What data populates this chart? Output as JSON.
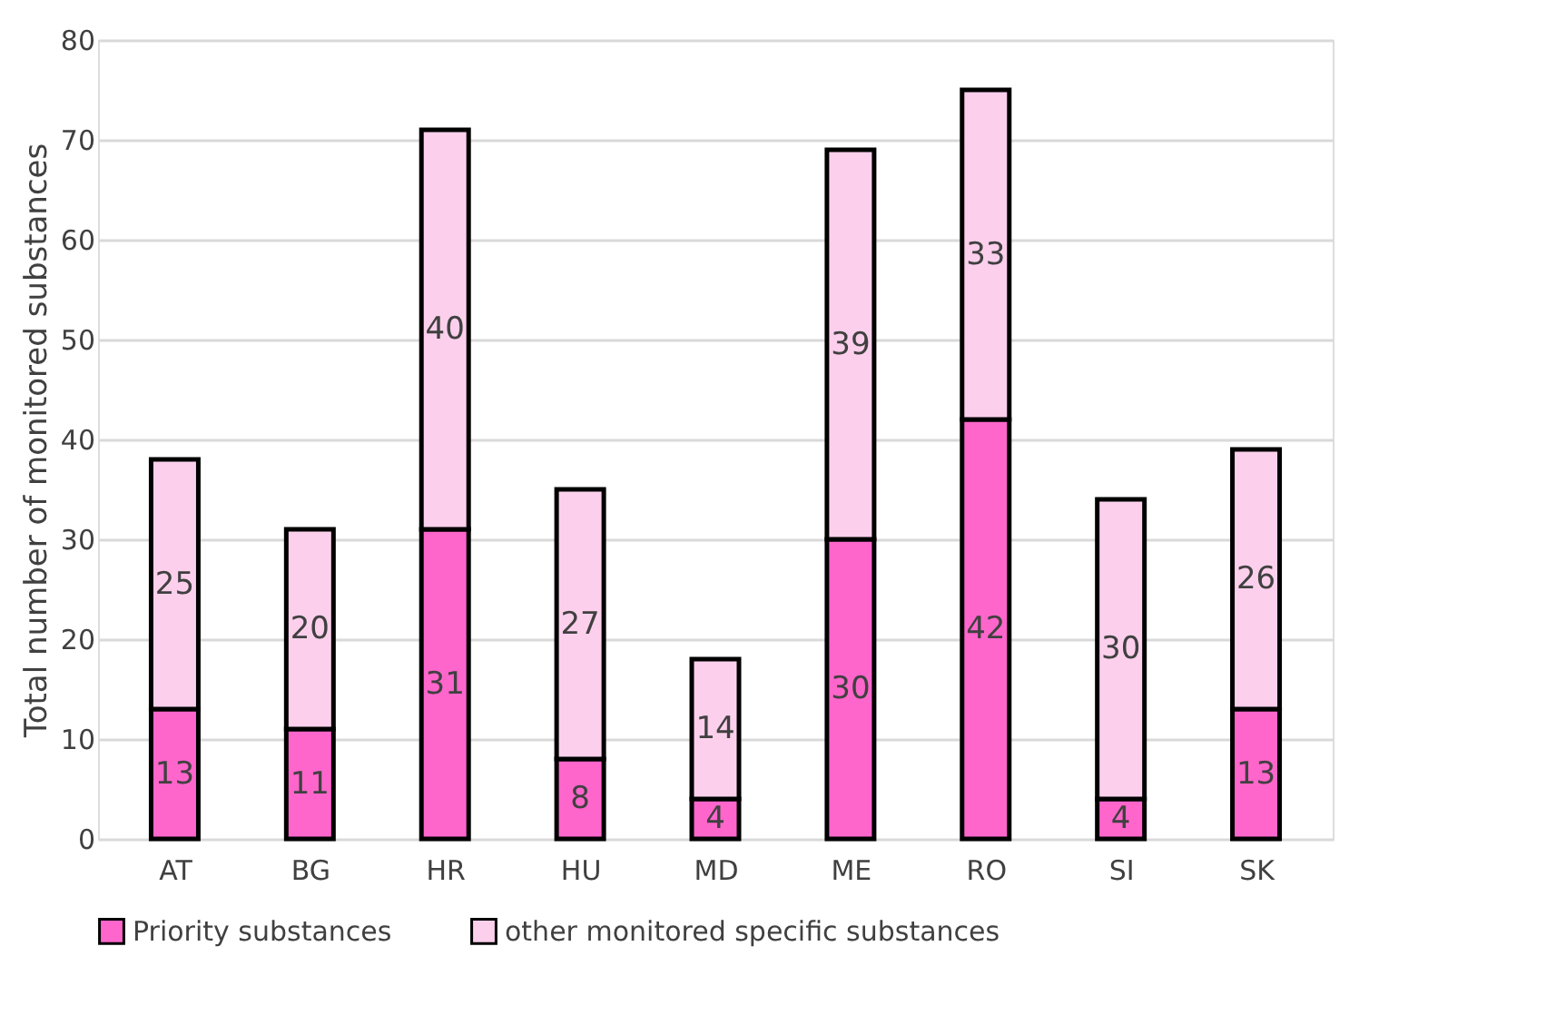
{
  "chart_data": {
    "type": "bar",
    "stacked": true,
    "ylabel": "Total number of monitored substances",
    "categories": [
      "AT",
      "BG",
      "HR",
      "HU",
      "MD",
      "ME",
      "RO",
      "SI",
      "SK"
    ],
    "series": [
      {
        "name": "Priority substances",
        "color": "#ff66cc",
        "values": [
          13,
          11,
          31,
          8,
          4,
          30,
          42,
          4,
          13
        ]
      },
      {
        "name": "other monitored specific substances",
        "color": "#fcd0ec",
        "values": [
          25,
          20,
          40,
          27,
          14,
          39,
          33,
          30,
          26
        ]
      }
    ],
    "ylim": [
      0,
      80
    ],
    "yticks": [
      0,
      10,
      20,
      30,
      40,
      50,
      60,
      70,
      80
    ],
    "grid": "y",
    "legend": "bottom",
    "data_labels": true
  }
}
